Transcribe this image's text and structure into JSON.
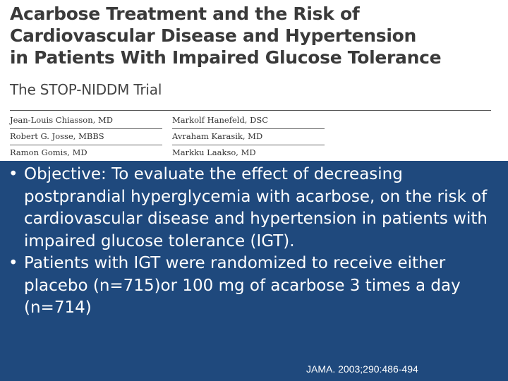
{
  "paper": {
    "title_lines": [
      "Acarbose Treatment and the Risk of",
      "Cardiovascular Disease and Hypertension",
      "in Patients With Impaired Glucose Tolerance"
    ],
    "subtitle": "The STOP-NIDDM Trial",
    "authors_left": [
      "Jean-Louis Chiasson, MD",
      "Robert G. Josse, MBBS",
      "Ramon Gomis, MD"
    ],
    "authors_right": [
      "Markolf Hanefeld, DSC",
      "Avraham Karasik, MD",
      "Markku Laakso, MD"
    ]
  },
  "bullets": [
    "Objective: To evaluate the effect of decreasing postprandial hyperglycemia with acarbose, on the risk of cardiovascular disease and hypertension in patients with impaired glucose tolerance (IGT).",
    "Patients with IGT were randomized to receive either placebo (n=715)or 100 mg of acarbose 3 times a day (n=714)"
  ],
  "bullet_symbol": "•",
  "citation": "JAMA. 2003;290:486-494",
  "colors": {
    "panel_background": "#1f497d",
    "title_text": "#3a3a3a"
  }
}
